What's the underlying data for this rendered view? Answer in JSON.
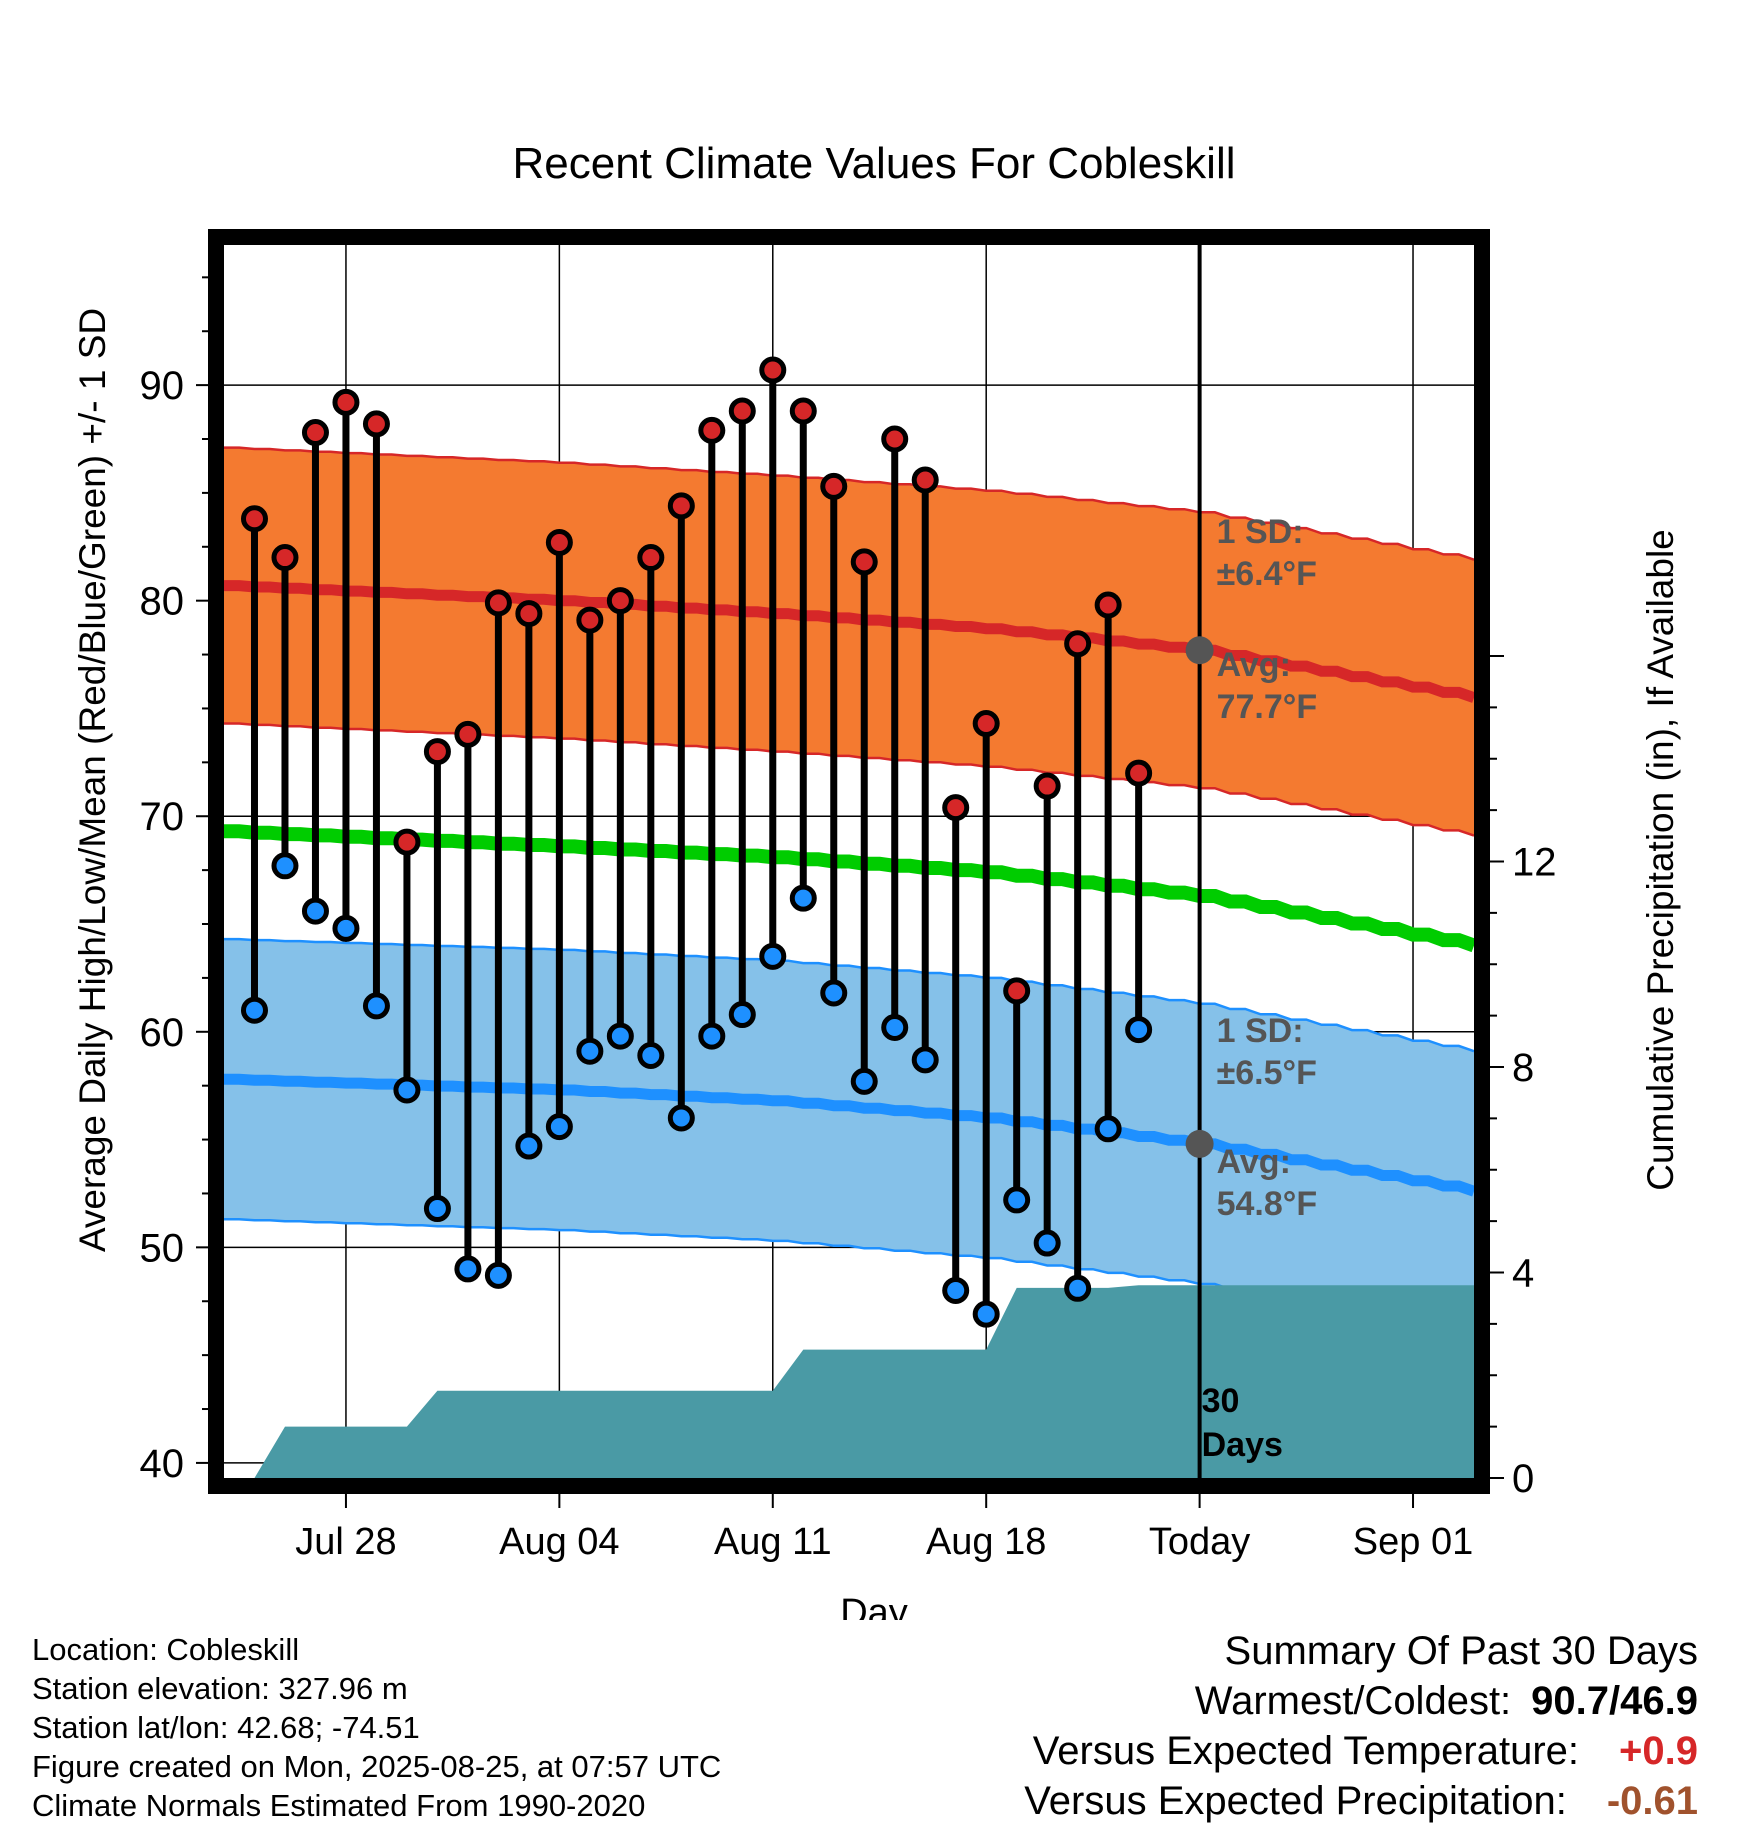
{
  "chart_data": {
    "type": "line",
    "title": "Recent Climate Values For Cobleskill",
    "xlabel": "Day",
    "ylabel": "Average Daily High/Low/Mean (Red/Blue/Green) +/- 1 SD",
    "ylabel_right": "Cumulative Precipitation (in), If Available",
    "x_tick_labels": [
      "Jul 28",
      "Aug 04",
      "Aug 11",
      "Aug 18",
      "Today",
      "Sep 01"
    ],
    "y_ticks": [
      40,
      50,
      60,
      70,
      80,
      90
    ],
    "y2_ticks": [
      0,
      4,
      8,
      12
    ],
    "ylim": [
      39.3,
      96.5
    ],
    "y2lim": [
      0,
      24
    ],
    "x_range_days": [
      "2025-07-24",
      "2025-09-03"
    ],
    "today": "2025-08-25",
    "grid": true,
    "series": [
      {
        "name": "Daily High",
        "color": "#d62728",
        "dates": [
          "2025-07-25",
          "2025-07-26",
          "2025-07-27",
          "2025-07-28",
          "2025-07-29",
          "2025-07-30",
          "2025-07-31",
          "2025-08-01",
          "2025-08-02",
          "2025-08-03",
          "2025-08-04",
          "2025-08-05",
          "2025-08-06",
          "2025-08-07",
          "2025-08-08",
          "2025-08-09",
          "2025-08-10",
          "2025-08-11",
          "2025-08-12",
          "2025-08-13",
          "2025-08-14",
          "2025-08-15",
          "2025-08-16",
          "2025-08-17",
          "2025-08-18",
          "2025-08-19",
          "2025-08-20",
          "2025-08-21",
          "2025-08-22",
          "2025-08-23",
          "2025-08-24"
        ],
        "values": [
          83.8,
          82.0,
          87.8,
          89.2,
          88.2,
          68.8,
          73.0,
          73.8,
          79.9,
          79.4,
          82.7,
          79.1,
          80.0,
          82.0,
          84.4,
          87.9,
          88.8,
          90.7,
          88.8,
          85.3,
          81.8,
          87.5,
          85.6,
          70.4,
          74.3,
          61.9,
          71.4,
          78.0,
          79.8,
          72.0,
          null
        ]
      },
      {
        "name": "Daily Low",
        "color": "#1e90ff",
        "dates": [
          "2025-07-25",
          "2025-07-26",
          "2025-07-27",
          "2025-07-28",
          "2025-07-29",
          "2025-07-30",
          "2025-07-31",
          "2025-08-01",
          "2025-08-02",
          "2025-08-03",
          "2025-08-04",
          "2025-08-05",
          "2025-08-06",
          "2025-08-07",
          "2025-08-08",
          "2025-08-09",
          "2025-08-10",
          "2025-08-11",
          "2025-08-12",
          "2025-08-13",
          "2025-08-14",
          "2025-08-15",
          "2025-08-16",
          "2025-08-17",
          "2025-08-18",
          "2025-08-19",
          "2025-08-20",
          "2025-08-21",
          "2025-08-22",
          "2025-08-23",
          "2025-08-24"
        ],
        "values": [
          61.0,
          67.7,
          65.6,
          64.8,
          61.2,
          57.3,
          51.8,
          49.0,
          48.7,
          54.7,
          55.6,
          59.1,
          59.8,
          58.9,
          56.0,
          59.8,
          60.8,
          63.5,
          66.2,
          61.8,
          57.7,
          60.2,
          58.7,
          48.0,
          46.9,
          52.2,
          50.2,
          48.1,
          55.5,
          60.1,
          null
        ]
      },
      {
        "name": "Normal High",
        "color": "#d62728",
        "dates": [
          "2025-07-24",
          "2025-08-04",
          "2025-08-11",
          "2025-08-18",
          "2025-08-25",
          "2025-09-03"
        ],
        "values": [
          80.7,
          80.0,
          79.4,
          78.7,
          77.7,
          75.5
        ],
        "sd": 6.4
      },
      {
        "name": "Normal Low",
        "color": "#1e90ff",
        "dates": [
          "2025-07-24",
          "2025-08-04",
          "2025-08-11",
          "2025-08-18",
          "2025-08-25",
          "2025-09-03"
        ],
        "values": [
          57.8,
          57.3,
          56.8,
          56.0,
          54.8,
          52.6
        ],
        "sd": 6.5
      },
      {
        "name": "Normal Mean",
        "color": "#00cc00",
        "dates": [
          "2025-07-24",
          "2025-08-04",
          "2025-08-11",
          "2025-08-18",
          "2025-08-25",
          "2025-09-03"
        ],
        "values": [
          69.3,
          68.6,
          68.1,
          67.4,
          66.3,
          64.0
        ]
      },
      {
        "name": "Cumulative Precipitation",
        "color": "#4a9aa5",
        "axis": "right",
        "dates": [
          "2025-07-25",
          "2025-07-26",
          "2025-07-27",
          "2025-07-28",
          "2025-07-29",
          "2025-07-30",
          "2025-07-31",
          "2025-08-01",
          "2025-08-02",
          "2025-08-03",
          "2025-08-04",
          "2025-08-05",
          "2025-08-06",
          "2025-08-07",
          "2025-08-08",
          "2025-08-09",
          "2025-08-10",
          "2025-08-11",
          "2025-08-12",
          "2025-08-13",
          "2025-08-14",
          "2025-08-15",
          "2025-08-16",
          "2025-08-17",
          "2025-08-18",
          "2025-08-19",
          "2025-08-20",
          "2025-08-21",
          "2025-08-22",
          "2025-08-23",
          "2025-08-24",
          "2025-08-25",
          "2025-09-03"
        ],
        "values": [
          0.0,
          1.0,
          1.0,
          1.0,
          1.0,
          1.0,
          1.7,
          1.7,
          1.7,
          1.7,
          1.7,
          1.7,
          1.7,
          1.7,
          1.7,
          1.7,
          1.7,
          1.7,
          2.5,
          2.5,
          2.5,
          2.5,
          2.5,
          2.5,
          2.5,
          3.7,
          3.7,
          3.7,
          3.7,
          3.75,
          3.75,
          3.75,
          3.75
        ]
      }
    ],
    "annotations": {
      "high_sd_label": [
        "1 SD:",
        "±6.4°F"
      ],
      "high_avg_label": [
        "Avg:",
        "77.7°F"
      ],
      "low_sd_label": [
        "1 SD:",
        "±6.5°F"
      ],
      "low_avg_label": [
        "Avg:",
        "54.8°F"
      ],
      "days_label": [
        "30",
        "Days"
      ]
    }
  },
  "footer": {
    "location": "Location: Cobleskill",
    "elevation": "Station elevation: 327.96 m",
    "latlon": "Station lat/lon: 42.68; -74.51",
    "created": "Figure created on Mon, 2025-08-25, at 07:57 UTC",
    "normals": "Climate Normals Estimated From 1990-2020"
  },
  "summary": {
    "heading": "Summary Of Past 30 Days",
    "warm_cold_label": "Warmest/Coldest:",
    "warm_cold_value": "90.7/46.9",
    "temp_label": "Versus Expected Temperature:",
    "temp_value": "+0.9",
    "temp_color": "#d62728",
    "precip_label": "Versus Expected Precipitation:",
    "precip_value": "-0.61",
    "precip_color": "#a0522d"
  }
}
